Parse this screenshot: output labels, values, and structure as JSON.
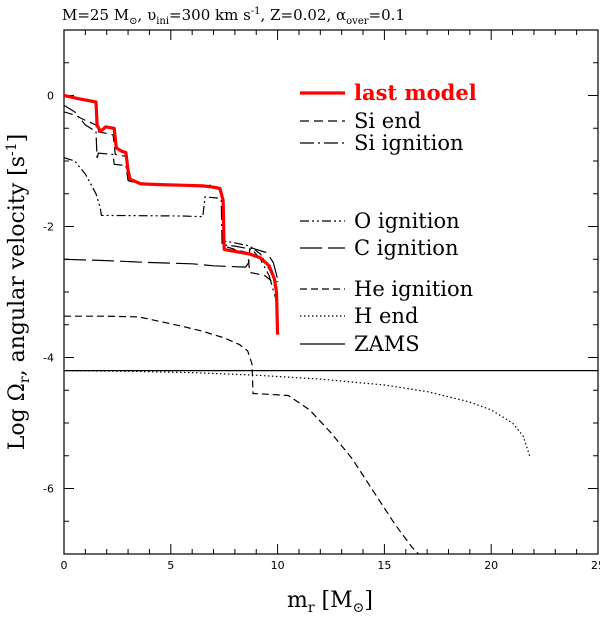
{
  "chart_data": {
    "type": "line",
    "title": "M=25 M⊙, υini=300 km s⁻¹, Z=0.02, αover=0.1",
    "title_parts": {
      "mass": "M=25 M",
      "sun": "⊙",
      "v": ", υ",
      "v_sub": "ini",
      "v_val": "=300 km s",
      "v_exp": "-1",
      "z": ", Z=0.02, ",
      "alpha": "α",
      "alpha_sub": "over",
      "alpha_val": "=0.1"
    },
    "xlabel": "m",
    "xlabel_sub": "r",
    "xlabel_unit": " [M",
    "xlabel_sun": "⊙",
    "xlabel_close": "]",
    "ylabel": "Log Ω",
    "ylabel_sub": "r",
    "ylabel_rest": ", angular velocity [s",
    "ylabel_exp": "-1",
    "ylabel_close": "]",
    "xlim": [
      0,
      25
    ],
    "ylim": [
      -7,
      1
    ],
    "x_ticks": [
      0,
      5,
      10,
      15,
      20,
      25
    ],
    "y_ticks": [
      0,
      -2,
      -4,
      -6
    ],
    "x_tick_labels": [
      "0",
      "5",
      "10",
      "15",
      "20",
      "25"
    ],
    "y_tick_labels": [
      "0",
      "-2",
      "-4",
      "-6"
    ],
    "grid": false,
    "legend_position": "upper right, inside",
    "series": [
      {
        "name": "last model",
        "color": "#ff0000",
        "style": "solid-thick",
        "points": [
          [
            0,
            0
          ],
          [
            0.7,
            -0.05
          ],
          [
            1.5,
            -0.1
          ],
          [
            1.55,
            -0.45
          ],
          [
            1.7,
            -0.55
          ],
          [
            1.95,
            -0.48
          ],
          [
            2.35,
            -0.5
          ],
          [
            2.45,
            -0.8
          ],
          [
            2.7,
            -0.85
          ],
          [
            2.9,
            -0.87
          ],
          [
            3,
            -1.15
          ],
          [
            3.1,
            -1.28
          ],
          [
            3.6,
            -1.35
          ],
          [
            4.5,
            -1.36
          ],
          [
            5.5,
            -1.37
          ],
          [
            6.5,
            -1.38
          ],
          [
            7,
            -1.4
          ],
          [
            7.3,
            -1.42
          ],
          [
            7.45,
            -1.6
          ],
          [
            7.5,
            -2.35
          ],
          [
            8,
            -2.38
          ],
          [
            8.7,
            -2.42
          ],
          [
            9.2,
            -2.48
          ],
          [
            9.6,
            -2.6
          ],
          [
            9.85,
            -2.8
          ],
          [
            9.95,
            -3.0
          ],
          [
            10,
            -3.65
          ]
        ]
      },
      {
        "name": "Si end",
        "color": "#000000",
        "style": "short-dash",
        "points": [
          [
            0,
            -0.25
          ],
          [
            0.5,
            -0.3
          ],
          [
            1.0,
            -0.38
          ],
          [
            1.5,
            -0.45
          ],
          [
            1.55,
            -0.55
          ],
          [
            2.3,
            -0.6
          ],
          [
            2.4,
            -0.9
          ],
          [
            2.9,
            -0.93
          ],
          [
            3,
            -1.3
          ],
          [
            4,
            -1.35
          ],
          [
            5,
            -1.37
          ],
          [
            6,
            -1.38
          ],
          [
            7,
            -1.4
          ],
          [
            7.4,
            -1.45
          ],
          [
            7.5,
            -2.3
          ],
          [
            8,
            -2.35
          ],
          [
            8.6,
            -2.4
          ],
          [
            8.7,
            -2.7
          ],
          [
            9.0,
            -2.72
          ],
          [
            9.4,
            -2.75
          ],
          [
            9.8,
            -2.85
          ],
          [
            10,
            -3.05
          ]
        ]
      },
      {
        "name": "Si ignition",
        "color": "#000000",
        "style": "dash-dot",
        "points": [
          [
            0,
            -0.15
          ],
          [
            0.5,
            -0.25
          ],
          [
            1.0,
            -0.45
          ],
          [
            1.5,
            -0.55
          ],
          [
            1.55,
            -0.98
          ],
          [
            1.6,
            -0.88
          ],
          [
            2.3,
            -0.9
          ],
          [
            2.35,
            -1.05
          ],
          [
            2.9,
            -1.07
          ],
          [
            3.0,
            -1.3
          ],
          [
            3.5,
            -1.35
          ],
          [
            5,
            -1.36
          ],
          [
            6.5,
            -1.37
          ],
          [
            6.8,
            -1.37
          ],
          [
            7.0,
            -1.38
          ],
          [
            7.35,
            -1.42
          ],
          [
            7.4,
            -2.28
          ],
          [
            8,
            -2.3
          ],
          [
            8.8,
            -2.35
          ],
          [
            9.2,
            -2.5
          ],
          [
            9.6,
            -2.75
          ],
          [
            10,
            -3.2
          ]
        ]
      },
      {
        "name": "O ignition",
        "color": "#000000",
        "style": "dash-dot-dot",
        "points": [
          [
            0,
            -0.95
          ],
          [
            0.5,
            -1.0
          ],
          [
            1.0,
            -1.2
          ],
          [
            1.5,
            -1.5
          ],
          [
            1.7,
            -1.72
          ],
          [
            1.75,
            -1.83
          ],
          [
            5.5,
            -1.84
          ],
          [
            6.5,
            -1.85
          ],
          [
            6.6,
            -1.55
          ],
          [
            7.4,
            -1.57
          ],
          [
            7.5,
            -2.22
          ],
          [
            8,
            -2.25
          ],
          [
            8.7,
            -2.3
          ],
          [
            9.2,
            -2.42
          ],
          [
            9.6,
            -2.65
          ],
          [
            10,
            -2.85
          ]
        ]
      },
      {
        "name": "C ignition",
        "color": "#000000",
        "style": "long-dash",
        "points": [
          [
            0,
            -2.5
          ],
          [
            2,
            -2.52
          ],
          [
            4,
            -2.55
          ],
          [
            6,
            -2.57
          ],
          [
            7,
            -2.6
          ],
          [
            8.5,
            -2.62
          ],
          [
            8.65,
            -2.55
          ],
          [
            8.7,
            -2.35
          ],
          [
            8.8,
            -2.33
          ],
          [
            9.5,
            -2.4
          ],
          [
            9.8,
            -2.55
          ],
          [
            10,
            -2.8
          ]
        ]
      },
      {
        "name": "He ignition",
        "color": "#000000",
        "style": "dashed",
        "points": [
          [
            0,
            -3.37
          ],
          [
            2,
            -3.37
          ],
          [
            3.5,
            -3.38
          ],
          [
            4.5,
            -3.45
          ],
          [
            5.5,
            -3.52
          ],
          [
            6.5,
            -3.6
          ],
          [
            7.5,
            -3.7
          ],
          [
            8.2,
            -3.8
          ],
          [
            8.6,
            -3.9
          ],
          [
            8.8,
            -4.1
          ],
          [
            8.85,
            -4.55
          ],
          [
            9.5,
            -4.56
          ],
          [
            10.5,
            -4.58
          ],
          [
            11.5,
            -4.8
          ],
          [
            12.5,
            -5.15
          ],
          [
            13.5,
            -5.55
          ],
          [
            14.5,
            -6.05
          ],
          [
            15.5,
            -6.55
          ],
          [
            16.3,
            -6.9
          ],
          [
            16.6,
            -7.0
          ]
        ]
      },
      {
        "name": "H end",
        "color": "#000000",
        "style": "dotted",
        "points": [
          [
            0,
            -4.2
          ],
          [
            3,
            -4.21
          ],
          [
            6,
            -4.23
          ],
          [
            9,
            -4.27
          ],
          [
            12,
            -4.33
          ],
          [
            15,
            -4.42
          ],
          [
            17,
            -4.52
          ],
          [
            19,
            -4.68
          ],
          [
            20,
            -4.8
          ],
          [
            21,
            -5.0
          ],
          [
            21.5,
            -5.2
          ],
          [
            21.8,
            -5.5
          ]
        ]
      },
      {
        "name": "ZAMS",
        "color": "#000000",
        "style": "solid",
        "points": [
          [
            0,
            -4.2
          ],
          [
            25,
            -4.2
          ]
        ]
      }
    ]
  }
}
